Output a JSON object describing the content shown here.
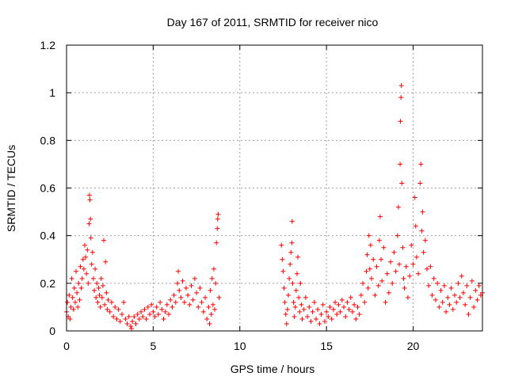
{
  "chart_data": {
    "type": "scatter",
    "title": "Day 167 of 2011, SRMTID for receiver nico",
    "xlabel": "GPS time / hours",
    "ylabel": "SRMTID / TECUs",
    "xlim": [
      0,
      24
    ],
    "ylim": [
      0,
      1.2
    ],
    "xticks": [
      0,
      5,
      10,
      15,
      20
    ],
    "xtick_labels": [
      "0",
      "5",
      "10",
      "15",
      "20"
    ],
    "yticks": [
      0,
      0.2,
      0.4,
      0.6,
      0.8,
      1.0,
      1.2
    ],
    "ytick_labels": [
      "0",
      "0.2",
      "0.4",
      "0.6",
      "0.8",
      "1",
      "1.2"
    ],
    "grid": true,
    "marker": "+",
    "color": "#ff0000",
    "series": [
      {
        "name": "SRMTID",
        "points": [
          [
            0.0,
            0.08
          ],
          [
            0.05,
            0.12
          ],
          [
            0.1,
            0.06
          ],
          [
            0.15,
            0.15
          ],
          [
            0.2,
            0.05
          ],
          [
            0.25,
            0.1
          ],
          [
            0.3,
            0.22
          ],
          [
            0.35,
            0.14
          ],
          [
            0.4,
            0.09
          ],
          [
            0.45,
            0.18
          ],
          [
            0.5,
            0.12
          ],
          [
            0.55,
            0.25
          ],
          [
            0.6,
            0.16
          ],
          [
            0.65,
            0.1
          ],
          [
            0.7,
            0.2
          ],
          [
            0.75,
            0.13
          ],
          [
            0.8,
            0.27
          ],
          [
            0.85,
            0.18
          ],
          [
            0.9,
            0.22
          ],
          [
            0.95,
            0.3
          ],
          [
            1.0,
            0.26
          ],
          [
            1.05,
            0.36
          ],
          [
            1.1,
            0.31
          ],
          [
            1.15,
            0.24
          ],
          [
            1.2,
            0.34
          ],
          [
            1.25,
            0.2
          ],
          [
            1.3,
            0.45
          ],
          [
            1.32,
            0.57
          ],
          [
            1.35,
            0.55
          ],
          [
            1.38,
            0.47
          ],
          [
            1.4,
            0.39
          ],
          [
            1.45,
            0.28
          ],
          [
            1.5,
            0.33
          ],
          [
            1.55,
            0.22
          ],
          [
            1.6,
            0.17
          ],
          [
            1.65,
            0.26
          ],
          [
            1.7,
            0.14
          ],
          [
            1.75,
            0.2
          ],
          [
            1.8,
            0.12
          ],
          [
            1.85,
            0.18
          ],
          [
            1.9,
            0.15
          ],
          [
            1.95,
            0.1
          ],
          [
            2.0,
            0.22
          ],
          [
            2.05,
            0.14
          ],
          [
            2.1,
            0.19
          ],
          [
            2.15,
            0.38
          ],
          [
            2.2,
            0.11
          ],
          [
            2.25,
            0.29
          ],
          [
            2.3,
            0.16
          ],
          [
            2.35,
            0.09
          ],
          [
            2.4,
            0.13
          ],
          [
            2.5,
            0.08
          ],
          [
            2.6,
            0.12
          ],
          [
            2.7,
            0.06
          ],
          [
            2.8,
            0.1
          ],
          [
            2.9,
            0.05
          ],
          [
            3.0,
            0.09
          ],
          [
            3.1,
            0.04
          ],
          [
            3.2,
            0.07
          ],
          [
            3.3,
            0.12
          ],
          [
            3.4,
            0.05
          ],
          [
            3.5,
            0.03
          ],
          [
            3.6,
            0.06
          ],
          [
            3.7,
            0.02
          ],
          [
            3.75,
            0.01
          ],
          [
            3.8,
            0.04
          ],
          [
            3.9,
            0.06
          ],
          [
            4.0,
            0.03
          ],
          [
            4.1,
            0.07
          ],
          [
            4.2,
            0.05
          ],
          [
            4.3,
            0.08
          ],
          [
            4.4,
            0.06
          ],
          [
            4.5,
            0.09
          ],
          [
            4.6,
            0.05
          ],
          [
            4.7,
            0.1
          ],
          [
            4.8,
            0.07
          ],
          [
            4.9,
            0.11
          ],
          [
            5.0,
            0.08
          ],
          [
            5.1,
            0.06
          ],
          [
            5.2,
            0.1
          ],
          [
            5.3,
            0.07
          ],
          [
            5.4,
            0.12
          ],
          [
            5.5,
            0.09
          ],
          [
            5.6,
            0.05
          ],
          [
            5.7,
            0.08
          ],
          [
            5.8,
            0.11
          ],
          [
            5.9,
            0.07
          ],
          [
            6.0,
            0.13
          ],
          [
            6.1,
            0.1
          ],
          [
            6.2,
            0.15
          ],
          [
            6.3,
            0.12
          ],
          [
            6.4,
            0.2
          ],
          [
            6.45,
            0.25
          ],
          [
            6.5,
            0.17
          ],
          [
            6.6,
            0.14
          ],
          [
            6.7,
            0.21
          ],
          [
            6.8,
            0.12
          ],
          [
            6.9,
            0.18
          ],
          [
            7.0,
            0.15
          ],
          [
            7.1,
            0.11
          ],
          [
            7.2,
            0.19
          ],
          [
            7.3,
            0.13
          ],
          [
            7.4,
            0.22
          ],
          [
            7.5,
            0.16
          ],
          [
            7.6,
            0.1
          ],
          [
            7.7,
            0.18
          ],
          [
            7.8,
            0.12
          ],
          [
            7.9,
            0.08
          ],
          [
            8.0,
            0.14
          ],
          [
            8.1,
            0.05
          ],
          [
            8.2,
            0.1
          ],
          [
            8.25,
            0.03
          ],
          [
            8.3,
            0.17
          ],
          [
            8.35,
            0.07
          ],
          [
            8.4,
            0.22
          ],
          [
            8.45,
            0.11
          ],
          [
            8.5,
            0.26
          ],
          [
            8.55,
            0.09
          ],
          [
            8.6,
            0.2
          ],
          [
            8.65,
            0.37
          ],
          [
            8.7,
            0.43
          ],
          [
            8.72,
            0.47
          ],
          [
            8.75,
            0.49
          ],
          [
            8.8,
            0.14
          ],
          [
            12.4,
            0.36
          ],
          [
            12.45,
            0.3
          ],
          [
            12.5,
            0.25
          ],
          [
            12.55,
            0.18
          ],
          [
            12.6,
            0.12
          ],
          [
            12.65,
            0.07
          ],
          [
            12.7,
            0.03
          ],
          [
            12.75,
            0.09
          ],
          [
            12.8,
            0.15
          ],
          [
            12.85,
            0.22
          ],
          [
            12.9,
            0.28
          ],
          [
            12.95,
            0.33
          ],
          [
            13.0,
            0.37
          ],
          [
            13.02,
            0.46
          ],
          [
            13.05,
            0.2
          ],
          [
            13.1,
            0.12
          ],
          [
            13.15,
            0.06
          ],
          [
            13.2,
            0.1
          ],
          [
            13.25,
            0.17
          ],
          [
            13.3,
            0.24
          ],
          [
            13.35,
            0.31
          ],
          [
            13.4,
            0.14
          ],
          [
            13.45,
            0.08
          ],
          [
            13.5,
            0.2
          ],
          [
            13.55,
            0.11
          ],
          [
            13.6,
            0.05
          ],
          [
            13.7,
            0.09
          ],
          [
            13.8,
            0.14
          ],
          [
            13.9,
            0.06
          ],
          [
            14.0,
            0.1
          ],
          [
            14.1,
            0.04
          ],
          [
            14.2,
            0.08
          ],
          [
            14.3,
            0.12
          ],
          [
            14.4,
            0.05
          ],
          [
            14.5,
            0.09
          ],
          [
            14.6,
            0.03
          ],
          [
            14.7,
            0.07
          ],
          [
            14.8,
            0.11
          ],
          [
            14.9,
            0.04
          ],
          [
            15.0,
            0.08
          ],
          [
            15.1,
            0.06
          ],
          [
            15.2,
            0.1
          ],
          [
            15.3,
            0.05
          ],
          [
            15.4,
            0.09
          ],
          [
            15.5,
            0.12
          ],
          [
            15.6,
            0.07
          ],
          [
            15.7,
            0.11
          ],
          [
            15.8,
            0.08
          ],
          [
            15.9,
            0.13
          ],
          [
            16.0,
            0.1
          ],
          [
            16.1,
            0.06
          ],
          [
            16.2,
            0.12
          ],
          [
            16.3,
            0.09
          ],
          [
            16.4,
            0.14
          ],
          [
            16.5,
            0.08
          ],
          [
            16.6,
            0.11
          ],
          [
            16.7,
            0.05
          ],
          [
            16.8,
            0.1
          ],
          [
            16.9,
            0.07
          ],
          [
            17.0,
            0.15
          ],
          [
            17.1,
            0.2
          ],
          [
            17.2,
            0.12
          ],
          [
            17.3,
            0.25
          ],
          [
            17.35,
            0.32
          ],
          [
            17.4,
            0.18
          ],
          [
            17.45,
            0.4
          ],
          [
            17.5,
            0.26
          ],
          [
            17.55,
            0.36
          ],
          [
            17.6,
            0.22
          ],
          [
            17.7,
            0.3
          ],
          [
            17.8,
            0.15
          ],
          [
            17.9,
            0.27
          ],
          [
            18.0,
            0.19
          ],
          [
            18.05,
            0.38
          ],
          [
            18.1,
            0.48
          ],
          [
            18.15,
            0.3
          ],
          [
            18.2,
            0.21
          ],
          [
            18.3,
            0.35
          ],
          [
            18.4,
            0.12
          ],
          [
            18.5,
            0.24
          ],
          [
            18.6,
            0.16
          ],
          [
            18.7,
            0.29
          ],
          [
            18.8,
            0.2
          ],
          [
            18.9,
            0.33
          ],
          [
            19.0,
            0.25
          ],
          [
            19.1,
            0.4
          ],
          [
            19.15,
            0.52
          ],
          [
            19.2,
            0.28
          ],
          [
            19.25,
            0.7
          ],
          [
            19.27,
            0.88
          ],
          [
            19.3,
            0.98
          ],
          [
            19.32,
            1.03
          ],
          [
            19.35,
            0.62
          ],
          [
            19.4,
            0.35
          ],
          [
            19.45,
            0.22
          ],
          [
            19.5,
            0.18
          ],
          [
            19.6,
            0.27
          ],
          [
            19.7,
            0.14
          ],
          [
            19.8,
            0.23
          ],
          [
            19.9,
            0.36
          ],
          [
            20.0,
            0.28
          ],
          [
            20.1,
            0.56
          ],
          [
            20.15,
            0.44
          ],
          [
            20.2,
            0.31
          ],
          [
            20.3,
            0.24
          ],
          [
            20.4,
            0.62
          ],
          [
            20.45,
            0.7
          ],
          [
            20.5,
            0.42
          ],
          [
            20.55,
            0.5
          ],
          [
            20.6,
            0.33
          ],
          [
            20.7,
            0.38
          ],
          [
            20.8,
            0.26
          ],
          [
            20.9,
            0.19
          ],
          [
            21.0,
            0.27
          ],
          [
            21.1,
            0.15
          ],
          [
            21.2,
            0.22
          ],
          [
            21.3,
            0.13
          ],
          [
            21.4,
            0.2
          ],
          [
            21.5,
            0.1
          ],
          [
            21.6,
            0.17
          ],
          [
            21.7,
            0.12
          ],
          [
            21.8,
            0.19
          ],
          [
            21.9,
            0.08
          ],
          [
            22.0,
            0.14
          ],
          [
            22.1,
            0.11
          ],
          [
            22.2,
            0.18
          ],
          [
            22.3,
            0.09
          ],
          [
            22.4,
            0.15
          ],
          [
            22.5,
            0.12
          ],
          [
            22.6,
            0.2
          ],
          [
            22.7,
            0.14
          ],
          [
            22.8,
            0.23
          ],
          [
            22.9,
            0.16
          ],
          [
            23.0,
            0.11
          ],
          [
            23.1,
            0.19
          ],
          [
            23.2,
            0.07
          ],
          [
            23.3,
            0.14
          ],
          [
            23.4,
            0.21
          ],
          [
            23.5,
            0.1
          ],
          [
            23.6,
            0.17
          ],
          [
            23.7,
            0.13
          ],
          [
            23.8,
            0.19
          ],
          [
            23.9,
            0.15
          ],
          [
            24.0,
            0.16
          ]
        ]
      }
    ]
  }
}
